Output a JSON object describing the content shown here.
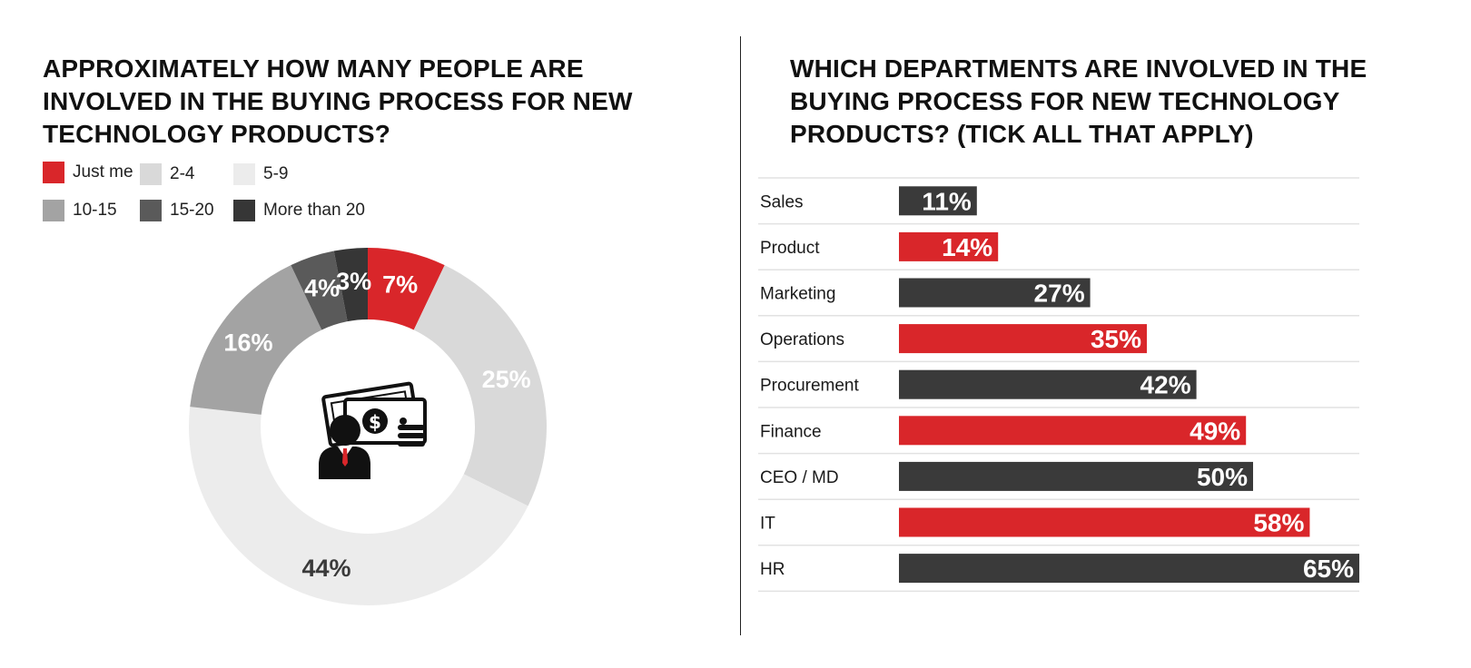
{
  "colors": {
    "red": "#d9262a",
    "dark": "#3a3a3a",
    "divider": "#222222",
    "rule": "#e2e2e2"
  },
  "icon": "businessman-money-icon",
  "chart_data": [
    {
      "type": "pie",
      "title": "APPROXIMATELY HOW MANY PEOPLE ARE INVOLVED IN THE BUYING PROCESS FOR NEW TECHNOLOGY PRODUCTS?",
      "legend_placement": "top-left",
      "slices": [
        {
          "name": "Just me",
          "value": 7,
          "label": "7%",
          "color": "#d9262a",
          "label_color": "#ffffff"
        },
        {
          "name": "2-4",
          "value": 25,
          "label": "25%",
          "color": "#d9d9d9",
          "label_color": "#ffffff"
        },
        {
          "name": "5-9",
          "value": 44,
          "label": "44%",
          "color": "#ececec",
          "label_color": "#3a3a3a"
        },
        {
          "name": "10-15",
          "value": 16,
          "label": "16%",
          "color": "#a3a3a3",
          "label_color": "#ffffff"
        },
        {
          "name": "15-20",
          "value": 4,
          "label": "4%",
          "color": "#5a5a5a",
          "label_color": "#ffffff"
        },
        {
          "name": "More than 20",
          "value": 3,
          "label": "3%",
          "color": "#363636",
          "label_color": "#ffffff"
        }
      ]
    },
    {
      "type": "bar",
      "orientation": "horizontal",
      "title": "WHICH DEPARTMENTS ARE INVOLVED IN THE BUYING PROCESS FOR NEW TECHNOLOGY PRODUCTS? (TICK ALL THAT APPLY)",
      "xlim": [
        0,
        65
      ],
      "categories": [
        "Sales",
        "Product",
        "Marketing",
        "Operations",
        "Procurement",
        "Finance",
        "CEO / MD",
        "IT",
        "HR"
      ],
      "values": [
        11,
        14,
        27,
        35,
        42,
        49,
        50,
        58,
        65
      ],
      "labels": [
        "11%",
        "14%",
        "27%",
        "35%",
        "42%",
        "49%",
        "50%",
        "58%",
        "65%"
      ],
      "bar_colors": [
        "#3a3a3a",
        "#d9262a",
        "#3a3a3a",
        "#d9262a",
        "#3a3a3a",
        "#d9262a",
        "#3a3a3a",
        "#d9262a",
        "#3a3a3a"
      ]
    }
  ]
}
